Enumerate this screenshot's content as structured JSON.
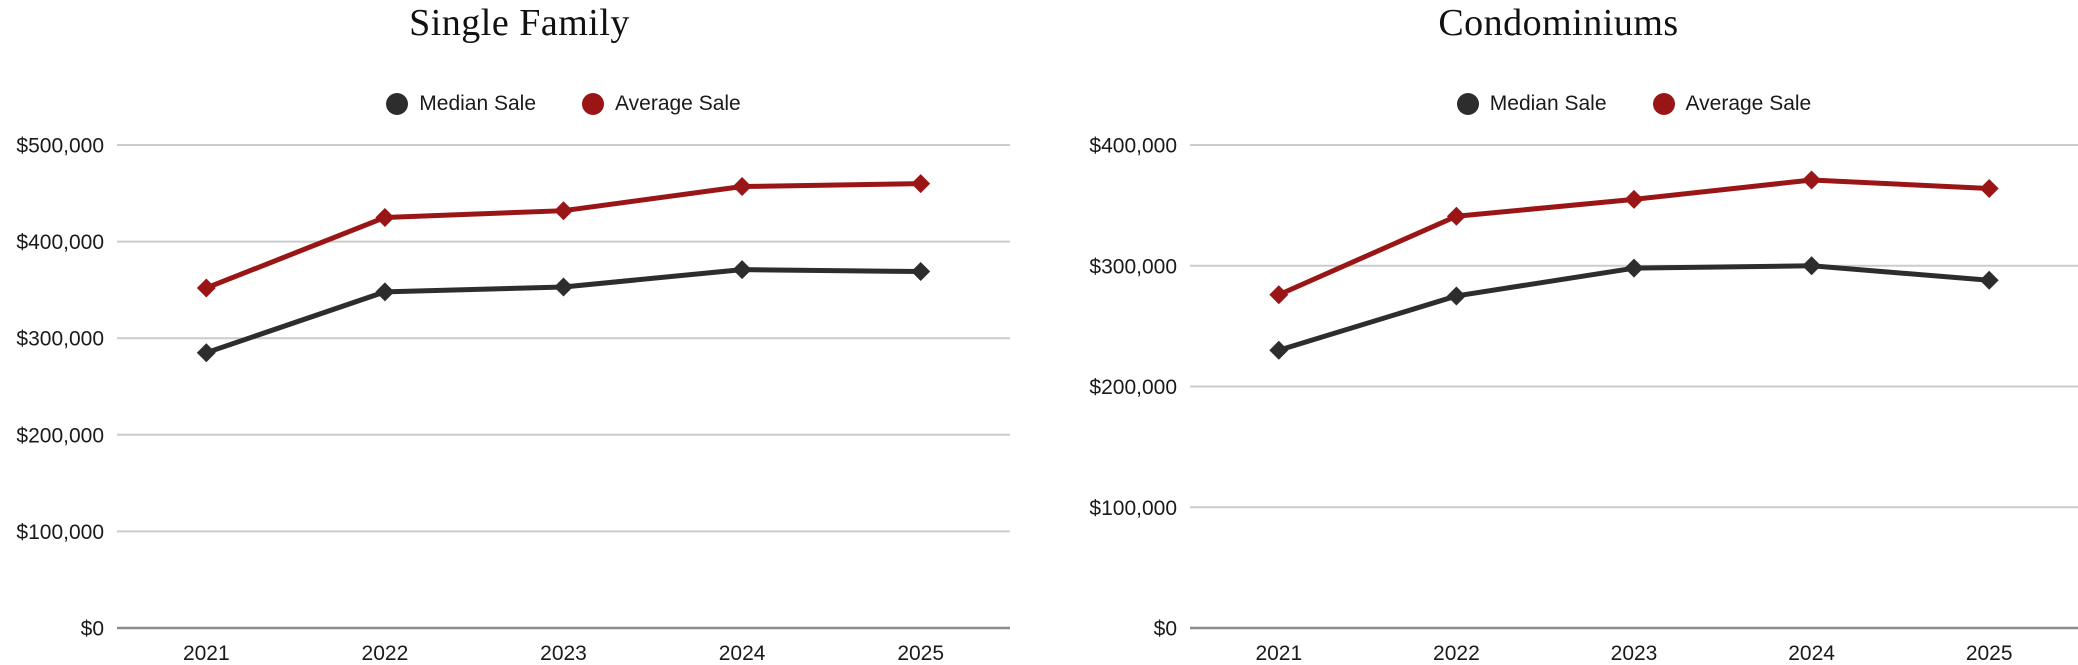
{
  "styles": {
    "background": "#ffffff",
    "grid_color": "#cccccc",
    "axis_line_color": "#8c8c8c",
    "tick_text_color": "#1a1a1a",
    "title_color": "#111111",
    "median_color": "#2d2d2d",
    "average_color": "#9a1616"
  },
  "chart_data": [
    {
      "type": "line",
      "title": "Single Family",
      "xlabel": "",
      "ylabel": "",
      "grid": true,
      "legend_position": "top-center",
      "marker": "diamond",
      "x": [
        "2021",
        "2022",
        "2023",
        "2024",
        "2025"
      ],
      "series": [
        {
          "name": "Median Sale",
          "color": "#2d2d2d",
          "values": [
            285000,
            348000,
            353000,
            371000,
            369000
          ]
        },
        {
          "name": "Average Sale",
          "color": "#9a1616",
          "values": [
            352000,
            425000,
            432000,
            457000,
            460000
          ]
        }
      ],
      "ylim": [
        0,
        500000
      ],
      "ytick_step": 100000,
      "ytick_labels": [
        "$0",
        "$100,000",
        "$200,000",
        "$300,000",
        "$400,000",
        "$500,000"
      ]
    },
    {
      "type": "line",
      "title": "Condominiums",
      "xlabel": "",
      "ylabel": "",
      "grid": true,
      "legend_position": "top-center",
      "marker": "diamond",
      "x": [
        "2021",
        "2022",
        "2023",
        "2024",
        "2025"
      ],
      "series": [
        {
          "name": "Median Sale",
          "color": "#2d2d2d",
          "values": [
            230000,
            275000,
            298000,
            300000,
            288000
          ]
        },
        {
          "name": "Average Sale",
          "color": "#9a1616",
          "values": [
            276000,
            341000,
            355000,
            371000,
            364000
          ]
        }
      ],
      "ylim": [
        0,
        400000
      ],
      "ytick_step": 100000,
      "ytick_labels": [
        "$0",
        "$100,000",
        "$200,000",
        "$300,000",
        "$400,000"
      ]
    }
  ]
}
